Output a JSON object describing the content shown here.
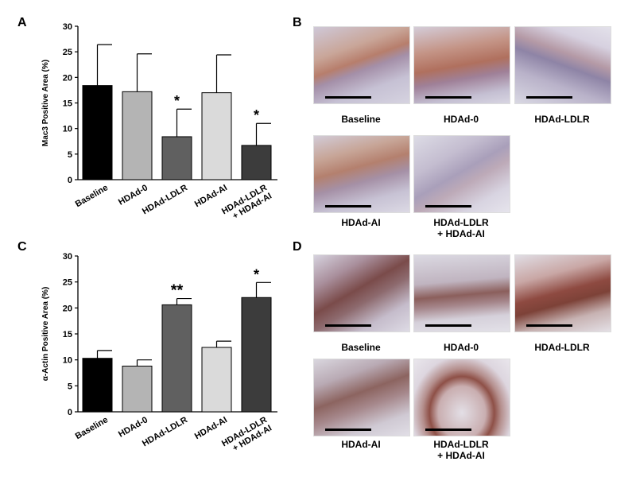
{
  "panels": {
    "A": {
      "letter": "A"
    },
    "B": {
      "letter": "B"
    },
    "C": {
      "letter": "C"
    },
    "D": {
      "letter": "D"
    }
  },
  "chart_data": [
    {
      "panel": "A",
      "type": "bar",
      "categories": [
        "Baseline",
        "HDAd-0",
        "HDAd-LDLR",
        "HDAd-AI",
        "HDAd-LDLR + HDAd-AI"
      ],
      "values": [
        18.4,
        17.2,
        8.4,
        17.0,
        6.7
      ],
      "errors": [
        8.0,
        7.4,
        5.4,
        7.4,
        4.3
      ],
      "significance": [
        "",
        "",
        "*",
        "",
        "*"
      ],
      "colors": [
        "#000000",
        "#b4b4b4",
        "#606060",
        "#dadada",
        "#3c3c3c"
      ],
      "ylabel": "Mac3 Positive Area (%)",
      "ylim": [
        0,
        30
      ],
      "yticks": [
        "0",
        "5",
        "10",
        "15",
        "20",
        "25",
        "30"
      ]
    },
    {
      "panel": "C",
      "type": "bar",
      "categories": [
        "Baseline",
        "HDAd-0",
        "HDAd-LDLR",
        "HDAd-AI",
        "HDAd-LDLR + HDAd-AI"
      ],
      "values": [
        10.3,
        8.8,
        20.6,
        12.4,
        22.0
      ],
      "errors": [
        1.5,
        1.2,
        1.2,
        1.2,
        2.9
      ],
      "significance": [
        "",
        "",
        "**",
        "",
        "*"
      ],
      "colors": [
        "#000000",
        "#b4b4b4",
        "#606060",
        "#dadada",
        "#3c3c3c"
      ],
      "ylabel": "α-Actin Positive Area (%)",
      "ylim": [
        0,
        30
      ],
      "yticks": [
        "0",
        "5",
        "10",
        "15",
        "20",
        "25",
        "30"
      ]
    }
  ],
  "micrographs": {
    "B": [
      {
        "label": "Baseline",
        "stain": "mac3"
      },
      {
        "label": "HDAd-0",
        "stain": "mac3"
      },
      {
        "label": "HDAd-LDLR",
        "stain": "mac3"
      },
      {
        "label": "HDAd-AI",
        "stain": "mac3"
      },
      {
        "label_line1": "HDAd-LDLR",
        "label_line2": "+ HDAd-AI",
        "stain": "mac3"
      }
    ],
    "D": [
      {
        "label": "Baseline",
        "stain": "actin"
      },
      {
        "label": "HDAd-0",
        "stain": "actin"
      },
      {
        "label": "HDAd-LDLR",
        "stain": "actin"
      },
      {
        "label": "HDAd-AI",
        "stain": "actin"
      },
      {
        "label_line1": "HDAd-LDLR",
        "label_line2": "+ HDAd-AI",
        "stain": "actin"
      }
    ]
  }
}
